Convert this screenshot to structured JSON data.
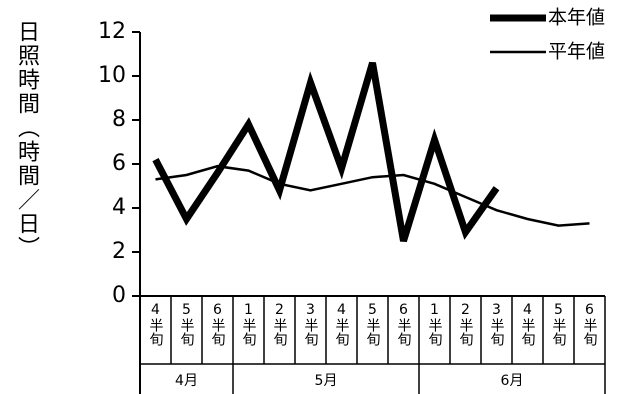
{
  "chart_data": {
    "type": "line",
    "ylabel": "日照時間（時間／日）",
    "groups": [
      {
        "label": "4月",
        "categories": [
          "4半旬",
          "5半旬",
          "6半旬"
        ]
      },
      {
        "label": "5月",
        "categories": [
          "1半旬",
          "2半旬",
          "3半旬",
          "4半旬",
          "5半旬",
          "6半旬"
        ]
      },
      {
        "label": "6月",
        "categories": [
          "1半旬",
          "2半旬",
          "3半旬",
          "4半旬",
          "5半旬",
          "6半旬"
        ]
      }
    ],
    "series": [
      {
        "name": "本年値",
        "color": "#000000",
        "width": 7,
        "values": [
          6.2,
          3.5,
          5.6,
          7.8,
          4.8,
          9.7,
          5.8,
          10.6,
          2.5,
          7.1,
          2.9,
          4.9,
          null,
          null,
          null
        ]
      },
      {
        "name": "平年値",
        "color": "#000000",
        "width": 2.5,
        "values": [
          5.3,
          5.5,
          5.9,
          5.7,
          5.1,
          4.8,
          5.1,
          5.4,
          5.5,
          5.1,
          4.5,
          3.9,
          3.5,
          3.2,
          3.3
        ]
      }
    ],
    "ylim": [
      0,
      12
    ],
    "yticks": [
      0,
      2,
      4,
      6,
      8,
      10,
      12
    ],
    "grid": false
  }
}
